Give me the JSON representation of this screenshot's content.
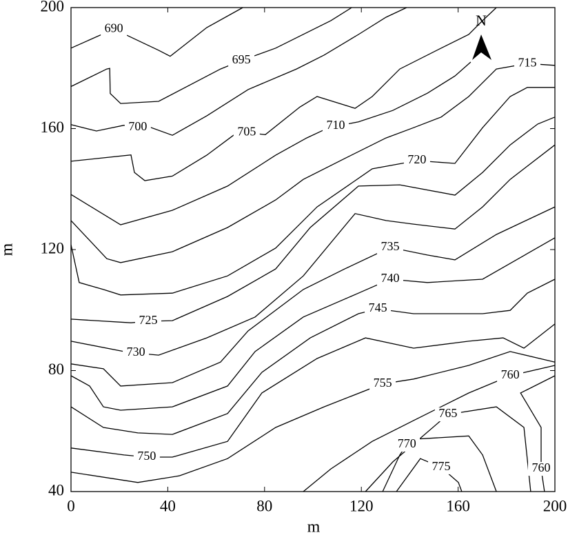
{
  "chart_data": {
    "type": "contour",
    "xlabel": "m",
    "ylabel": "m",
    "annotation": "N",
    "xlim": [
      0,
      200
    ],
    "ylim": [
      40,
      200
    ],
    "xticks": [
      0,
      40,
      80,
      120,
      160,
      200
    ],
    "yticks": [
      40,
      80,
      120,
      160,
      200
    ],
    "color": "#000000",
    "contours": [
      {
        "level": 690,
        "x": [
          0,
          17.7,
          36.2,
          41,
          56.1,
          71
        ],
        "y": [
          186.6,
          192.9,
          185.9,
          183.9,
          193.4,
          200
        ]
      },
      {
        "level": 695,
        "x": [
          0,
          14.8,
          16,
          16.2,
          20.5,
          36.2,
          61.8,
          70.4,
          84.6,
          98.9,
          107.4,
          116
        ],
        "y": [
          173.9,
          179.7,
          179.9,
          171.6,
          168.3,
          169,
          179.7,
          182.5,
          186.6,
          192.3,
          195.7,
          200
        ]
      },
      {
        "level": 700,
        "x": [
          0,
          10.5,
          21.9,
          27.6,
          32.8,
          41.9,
          56.1,
          73.2,
          93.2,
          104.6,
          118.8,
          130.2,
          138.7
        ],
        "y": [
          161.3,
          159.2,
          161.1,
          160.4,
          160.4,
          157.8,
          164.2,
          172.9,
          179.7,
          184.3,
          191.1,
          196.8,
          200
        ]
      },
      {
        "level": 705,
        "x": [
          0,
          24.8,
          26.2,
          30.5,
          41.9,
          56.1,
          67.5,
          72.6,
          80.3,
          94.6,
          101.7,
          117.4,
          124.5,
          135.9,
          153,
          164.4,
          170.1,
          175.8
        ],
        "y": [
          149.2,
          151.3,
          145.5,
          142.8,
          144.3,
          151.2,
          158,
          158.7,
          158,
          167.1,
          170.6,
          166.7,
          170.6,
          179.7,
          186.6,
          191.1,
          195.7,
          200
        ]
      },
      {
        "level": 710,
        "x": [
          0,
          20.5,
          41.9,
          64.7,
          84.6,
          97.4,
          104.6,
          109.4,
          118.8,
          133,
          147.3,
          158.7,
          165.2
        ],
        "y": [
          138.2,
          128.2,
          133,
          141,
          151.2,
          156.9,
          159.6,
          160.8,
          162.2,
          166,
          171.7,
          177.4,
          182
        ]
      },
      {
        "level": 715,
        "x": [
          0,
          14.8,
          20.5,
          41.9,
          64.7,
          84.6,
          96,
          113.1,
          130.2,
          141.6,
          153,
          164.4,
          175.8,
          188.6,
          200
        ],
        "y": [
          129.6,
          117,
          115.7,
          119.3,
          127.3,
          136.4,
          143.2,
          150.1,
          156.9,
          160.3,
          163.8,
          170.6,
          179.7,
          181.5,
          180.9
        ]
      },
      {
        "level": 720,
        "x": [
          0,
          3.4,
          13.4,
          20.5,
          41.9,
          64.7,
          84.6,
          101.7,
          124.5,
          143,
          158.7,
          170.1,
          181.5,
          188.6,
          200
        ],
        "y": [
          121.6,
          109.1,
          106.8,
          105,
          105.6,
          111.3,
          120.5,
          134.1,
          146.7,
          149.4,
          148.5,
          160.3,
          170.6,
          173.6,
          173.6
        ]
      },
      {
        "level": 725,
        "x": [
          0,
          24.8,
          31.9,
          41.9,
          64.7,
          84.6,
          98.9,
          118.8,
          135.9,
          158.7,
          170.1,
          181.5,
          192.9,
          200
        ],
        "y": [
          97,
          95.8,
          96.3,
          96.5,
          104.5,
          113.6,
          127.3,
          141,
          141.4,
          138,
          145.5,
          154.6,
          161.5,
          163.8
        ]
      },
      {
        "level": 730,
        "x": [
          0,
          21.9,
          26.8,
          36.2,
          56.1,
          76.1,
          96,
          117.4,
          130.2,
          141.6,
          158.7,
          170.1,
          181.5,
          200
        ],
        "y": [
          89.7,
          86.3,
          85.8,
          85.1,
          90.8,
          97.7,
          111.3,
          131.9,
          129.6,
          128.4,
          126.8,
          134.1,
          143.2,
          154.6
        ]
      },
      {
        "level": 735,
        "x": [
          0,
          13.4,
          20.5,
          41.9,
          61.8,
          73.2,
          96,
          113.1,
          131.9,
          147.3,
          158.7,
          175.8,
          200
        ],
        "y": [
          82.2,
          80.6,
          74.9,
          76,
          82.8,
          93.1,
          106.8,
          113.6,
          120.7,
          118.2,
          116.6,
          125,
          134.1
        ]
      },
      {
        "level": 740,
        "x": [
          0,
          7.7,
          13.4,
          20.5,
          41.9,
          64.7,
          76.1,
          96,
          118.8,
          131.9,
          147.3,
          170.1,
          200
        ],
        "y": [
          78.3,
          74.9,
          68,
          66.9,
          68,
          74.9,
          86.3,
          97.7,
          105.6,
          110.2,
          109.1,
          110.2,
          123.9
        ]
      },
      {
        "level": 745,
        "x": [
          0,
          13.4,
          27.6,
          41.9,
          64.7,
          78.9,
          98.9,
          118.8,
          126.8,
          141.6,
          170.1,
          181.5,
          188.6,
          200
        ],
        "y": [
          68,
          61.2,
          59.4,
          58.9,
          65.8,
          79.4,
          90.8,
          98.8,
          100.4,
          98.8,
          98.8,
          99.9,
          105.6,
          110.2
        ]
      },
      {
        "level": 750,
        "x": [
          0,
          21.9,
          31.3,
          41.9,
          64.7,
          78.9,
          101.7,
          121.7,
          141.6,
          164.4,
          178.6,
          187.2,
          200
        ],
        "y": [
          54.4,
          52.1,
          51.4,
          51.4,
          56.6,
          72.6,
          84,
          90.8,
          87.4,
          89.7,
          90.8,
          87.4,
          95.4
        ]
      },
      {
        "level": 755,
        "x": [
          0,
          27.6,
          44.7,
          64.7,
          84.6,
          104.6,
          128.8,
          141.6,
          164.4,
          181.5,
          200
        ],
        "y": [
          46.4,
          43,
          45.2,
          50.9,
          61.2,
          68,
          75.6,
          77.2,
          81.7,
          86.3,
          82.8
        ]
      },
      {
        "level": 760,
        "x": [
          96,
          107.4,
          124.5,
          141.6,
          164.4,
          181.5,
          200
        ],
        "y": [
          40,
          47.5,
          56.6,
          63.5,
          72.6,
          78.3,
          81.7
        ]
      },
      {
        "level": 760,
        "x": [
          200,
          185.8,
          194.3,
          194.3,
          195.7
        ],
        "y": [
          78.3,
          72.6,
          61.2,
          47.5,
          40
        ]
      },
      {
        "level": 765,
        "x": [
          121.7,
          133,
          155.8,
          175.8,
          187.2,
          190
        ],
        "y": [
          40,
          49.8,
          65.5,
          68,
          61.2,
          40
        ]
      },
      {
        "level": 770,
        "x": [
          128.8,
          135.9,
          138.8,
          141.6,
          164.4,
          170.1,
          175.8
        ],
        "y": [
          40,
          52.1,
          55.5,
          57.3,
          58.4,
          52.1,
          40
        ]
      },
      {
        "level": 775,
        "x": [
          134.5,
          144.4,
          153,
          160.1,
          161.5
        ],
        "y": [
          40,
          50.9,
          48,
          43,
          40
        ]
      }
    ]
  }
}
